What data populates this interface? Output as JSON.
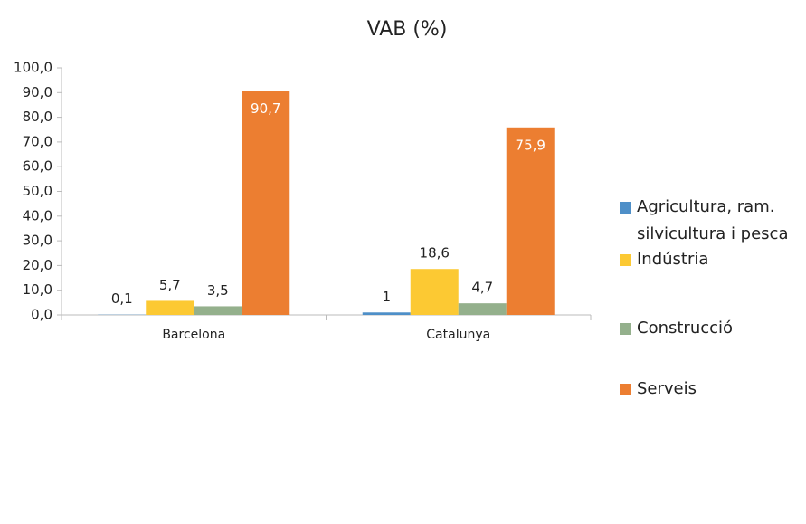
{
  "chart_data": {
    "type": "bar",
    "title": "VAB (%)",
    "categories": [
      "Barcelona",
      "Catalunya"
    ],
    "series": [
      {
        "name": "Agricultura, ram. silvicultura i pesca",
        "color": "#4e8fc8",
        "values": [
          0.1,
          1
        ],
        "value_labels": [
          "0,1",
          "1"
        ]
      },
      {
        "name": "Indústria",
        "color": "#fcc933",
        "values": [
          5.7,
          18.6
        ],
        "value_labels": [
          "5,7",
          "18,6"
        ]
      },
      {
        "name": "Construcció",
        "color": "#94b08c",
        "values": [
          3.5,
          4.7
        ],
        "value_labels": [
          "3,5",
          "4,7"
        ]
      },
      {
        "name": "Serveis",
        "color": "#ec7e31",
        "values": [
          90.7,
          75.9
        ],
        "value_labels": [
          "90,7",
          "75,9"
        ]
      }
    ],
    "ylim": [
      0,
      100
    ],
    "yticks": [
      {
        "value": 0,
        "label": "0,0"
      },
      {
        "value": 10,
        "label": "10,0"
      },
      {
        "value": 20,
        "label": "20,0"
      },
      {
        "value": 30,
        "label": "30,0"
      },
      {
        "value": 40,
        "label": "40,0"
      },
      {
        "value": 50,
        "label": "50,0"
      },
      {
        "value": 60,
        "label": "60,0"
      },
      {
        "value": 70,
        "label": "70,0"
      },
      {
        "value": 80,
        "label": "80,0"
      },
      {
        "value": 90,
        "label": "90,0"
      },
      {
        "value": 100,
        "label": "100,0"
      }
    ],
    "legend": "right"
  }
}
